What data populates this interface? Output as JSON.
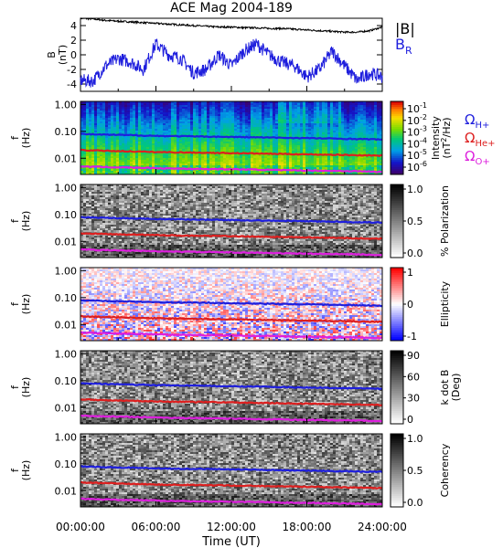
{
  "chart_data": [
    {
      "type": "line",
      "title": "ACE Mag 2004-189",
      "ylabel_main": "B",
      "ylabel_unit": "(nT)",
      "yticks": [
        4,
        2,
        0,
        -2,
        -4
      ],
      "ylim": [
        -5,
        5
      ],
      "series": [
        {
          "name": "|B|",
          "color": "#000000",
          "x": [
            0,
            1,
            2,
            3,
            4,
            5,
            6,
            7,
            8,
            9,
            10,
            11,
            12,
            13,
            14,
            15,
            16,
            17,
            18,
            19,
            20,
            21,
            22,
            23,
            24
          ],
          "y": [
            5.0,
            4.9,
            4.7,
            4.6,
            4.5,
            4.4,
            4.3,
            4.2,
            4.1,
            4.0,
            3.9,
            3.8,
            3.8,
            3.7,
            3.7,
            3.6,
            3.6,
            3.5,
            3.4,
            3.3,
            3.2,
            3.1,
            3.1,
            3.3,
            3.8
          ]
        },
        {
          "name_main": "B",
          "name_sub": "R",
          "color": "#1f1fdd",
          "x": [
            0,
            1,
            2,
            3,
            4,
            5,
            6,
            7,
            8,
            9,
            10,
            11,
            12,
            13,
            14,
            15,
            16,
            17,
            18,
            19,
            20,
            21,
            22,
            23,
            24
          ],
          "y": [
            -3.5,
            -3.6,
            -1.5,
            -0.5,
            -1.0,
            -2.0,
            1.5,
            0.0,
            -0.5,
            -2.5,
            -2.0,
            0.0,
            -1.5,
            0.5,
            1.5,
            0.0,
            -1.0,
            -1.5,
            -3.0,
            -2.0,
            0.5,
            -1.5,
            -3.5,
            -2.5,
            -3.0
          ]
        }
      ]
    },
    {
      "type": "heatmap",
      "ylabel_main": "f",
      "ylabel_unit": "(Hz)",
      "yticks": [
        "1.00",
        "0.10",
        "0.01"
      ],
      "colorbar_label": "Intensity",
      "colorbar_unit_main": "(nT",
      "colorbar_unit_sup": "2",
      "colorbar_unit_tail": "/Hz)",
      "colorbar_ticks": [
        {
          "base": "10",
          "exp": "-1"
        },
        {
          "base": "10",
          "exp": "-2"
        },
        {
          "base": "10",
          "exp": "-3"
        },
        {
          "base": "10",
          "exp": "-4"
        },
        {
          "base": "10",
          "exp": "-5"
        },
        {
          "base": "10",
          "exp": "-6"
        }
      ],
      "colorscale": "rainbow",
      "gyro_legend": [
        {
          "main": "Ω",
          "sub": "H+",
          "color": "#1f1fdd"
        },
        {
          "main": "Ω",
          "sub": "He+",
          "color": "#dd1f1f"
        },
        {
          "main": "Ω",
          "sub": "O+",
          "color": "#dd1fdd"
        }
      ]
    },
    {
      "type": "heatmap",
      "ylabel_main": "f",
      "ylabel_unit": "(Hz)",
      "yticks": [
        "1.00",
        "0.10",
        "0.01"
      ],
      "colorbar_label": "% Polarization",
      "colorbar_ticks": [
        "1.0",
        "0.5",
        "0.0"
      ],
      "colorscale": "gray"
    },
    {
      "type": "heatmap",
      "ylabel_main": "f",
      "ylabel_unit": "(Hz)",
      "yticks": [
        "1.00",
        "0.10",
        "0.01"
      ],
      "colorbar_label": "Ellipticity",
      "colorbar_ticks": [
        "1",
        "0",
        "-1"
      ],
      "colorscale": "bwr"
    },
    {
      "type": "heatmap",
      "ylabel_main": "f",
      "ylabel_unit": "(Hz)",
      "yticks": [
        "1.00",
        "0.10",
        "0.01"
      ],
      "colorbar_label": "k dot B",
      "colorbar_unit": "(Deg)",
      "colorbar_ticks": [
        "90",
        "60",
        "30",
        "0"
      ],
      "colorscale": "gray"
    },
    {
      "type": "heatmap",
      "ylabel_main": "f",
      "ylabel_unit": "(Hz)",
      "yticks": [
        "1.00",
        "0.10",
        "0.01"
      ],
      "colorbar_label": "Coherency",
      "colorbar_ticks": [
        "1.0",
        "0.5",
        "0.0"
      ],
      "colorscale": "gray"
    }
  ],
  "gyrofrequencies": {
    "x": [
      0,
      2,
      4,
      6,
      8,
      10,
      12,
      14,
      16,
      18,
      20,
      22,
      24
    ],
    "H": [
      0.08,
      0.075,
      0.072,
      0.068,
      0.066,
      0.064,
      0.062,
      0.06,
      0.058,
      0.056,
      0.054,
      0.052,
      0.05
    ],
    "He": [
      0.02,
      0.019,
      0.018,
      0.017,
      0.0165,
      0.016,
      0.0155,
      0.015,
      0.0145,
      0.014,
      0.0135,
      0.013,
      0.0125
    ],
    "O": [
      0.005,
      0.0047,
      0.0045,
      0.0043,
      0.0041,
      0.004,
      0.0039,
      0.0038,
      0.0036,
      0.0035,
      0.0034,
      0.0033,
      0.0031
    ]
  },
  "xaxis": {
    "ticks": [
      "00:00:00",
      "06:00:00",
      "12:00:00",
      "18:00:00",
      "24:00:00"
    ],
    "label": "Time (UT)"
  }
}
